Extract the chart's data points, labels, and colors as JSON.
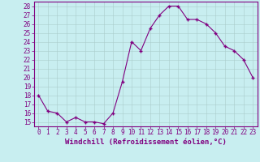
{
  "x": [
    0,
    1,
    2,
    3,
    4,
    5,
    6,
    7,
    8,
    9,
    10,
    11,
    12,
    13,
    14,
    15,
    16,
    17,
    18,
    19,
    20,
    21,
    22,
    23
  ],
  "y": [
    18,
    16.2,
    16,
    15,
    15.5,
    15,
    15,
    14.8,
    16,
    19.5,
    24,
    23,
    25.5,
    27,
    28,
    28,
    26.5,
    26.5,
    26,
    25,
    23.5,
    23,
    22,
    20
  ],
  "line_color": "#800080",
  "marker": "+",
  "marker_size": 3.5,
  "marker_lw": 1.0,
  "bg_color": "#c8eef0",
  "grid_color": "#aacccc",
  "xlabel": "Windchill (Refroidissement éolien,°C)",
  "xlabel_fontsize": 6.5,
  "tick_fontsize": 5.5,
  "ylim": [
    14.5,
    28.5
  ],
  "yticks": [
    15,
    16,
    17,
    18,
    19,
    20,
    21,
    22,
    23,
    24,
    25,
    26,
    27,
    28
  ],
  "xticks": [
    0,
    1,
    2,
    3,
    4,
    5,
    6,
    7,
    8,
    9,
    10,
    11,
    12,
    13,
    14,
    15,
    16,
    17,
    18,
    19,
    20,
    21,
    22,
    23
  ],
  "xlim": [
    -0.5,
    23.5
  ],
  "linewidth": 0.8,
  "spine_color": "#800080"
}
